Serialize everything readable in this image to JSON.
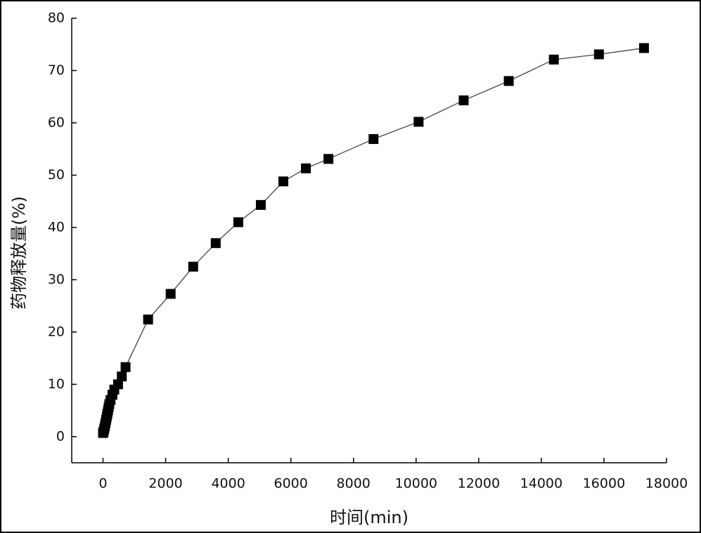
{
  "chart_data": {
    "type": "line",
    "x_label": "时间(min)",
    "y_label": "药物释放量(%)",
    "x": [
      0,
      20,
      40,
      60,
      80,
      100,
      120,
      140,
      160,
      180,
      200,
      240,
      300,
      360,
      480,
      600,
      720,
      1440,
      2160,
      2880,
      3600,
      4320,
      5040,
      5760,
      6480,
      7200,
      8640,
      10080,
      11520,
      12960,
      14400,
      15840,
      17280
    ],
    "series": [
      {
        "color": "#000000",
        "values": [
          0.7,
          1,
          1.5,
          2,
          2.6,
          3.2,
          3.8,
          4.4,
          5,
          5.6,
          6.2,
          7,
          8,
          9,
          10,
          11.5,
          13.3,
          22.4,
          27.3,
          32.5,
          37,
          41,
          44.3,
          48.8,
          51.3,
          53.1,
          56.9,
          60.2,
          64.3,
          68,
          72.1,
          73.1,
          74.3
        ]
      }
    ],
    "xlim": [
      -1000,
      18000
    ],
    "xticks": [
      0,
      2000,
      4000,
      6000,
      8000,
      10000,
      12000,
      14000,
      16000,
      18000
    ],
    "ylim": [
      -5,
      80
    ],
    "yticks": [
      0,
      10,
      20,
      30,
      40,
      50,
      60,
      70,
      80
    ]
  }
}
